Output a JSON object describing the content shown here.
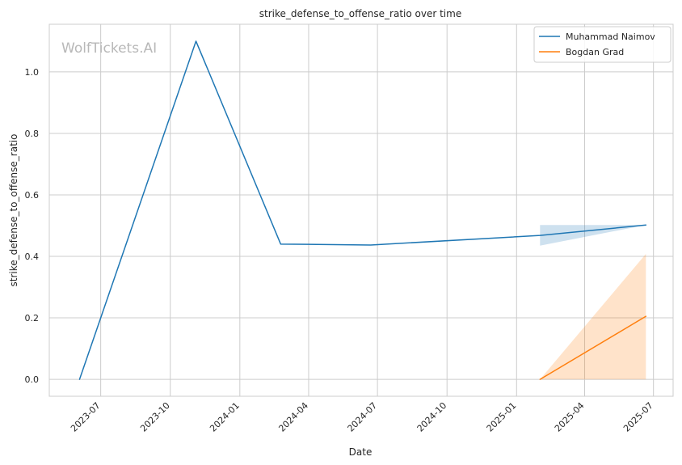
{
  "watermark": "WolfTickets.AI",
  "chart_data": {
    "type": "line",
    "title": "strike_defense_to_offense_ratio over time",
    "xlabel": "Date",
    "ylabel": "strike_defense_to_offense_ratio",
    "x_ticks": [
      "2023-07",
      "2023-10",
      "2024-01",
      "2024-04",
      "2024-07",
      "2024-10",
      "2025-01",
      "2025-04",
      "2025-07"
    ],
    "y_ticks": [
      "0.0",
      "0.2",
      "0.4",
      "0.6",
      "0.8",
      "1.0"
    ],
    "xlim": [
      "2023-04-24",
      "2025-07-27"
    ],
    "ylim": [
      -0.055,
      1.155
    ],
    "grid": true,
    "legend_position": "top-right",
    "series": [
      {
        "name": "Muhammad Naimov",
        "color": "#1f77b4",
        "points": [
          {
            "x": "2023-06-03",
            "y": 0.0
          },
          {
            "x": "2023-11-04",
            "y": 1.1
          },
          {
            "x": "2024-02-24",
            "y": 0.44
          },
          {
            "x": "2024-06-22",
            "y": 0.437
          },
          {
            "x": "2025-02-01",
            "y": 0.468
          },
          {
            "x": "2025-06-21",
            "y": 0.502
          }
        ],
        "band": [
          {
            "x": "2025-02-01",
            "lower": 0.435,
            "upper": 0.502
          },
          {
            "x": "2025-06-21",
            "lower": 0.502,
            "upper": 0.502
          }
        ]
      },
      {
        "name": "Bogdan Grad",
        "color": "#ff7f0e",
        "points": [
          {
            "x": "2025-02-01",
            "y": 0.0
          },
          {
            "x": "2025-06-21",
            "y": 0.205
          }
        ],
        "band": [
          {
            "x": "2025-02-01",
            "lower": 0.0,
            "upper": 0.0
          },
          {
            "x": "2025-06-21",
            "lower": 0.0,
            "upper": 0.408
          }
        ]
      }
    ]
  }
}
